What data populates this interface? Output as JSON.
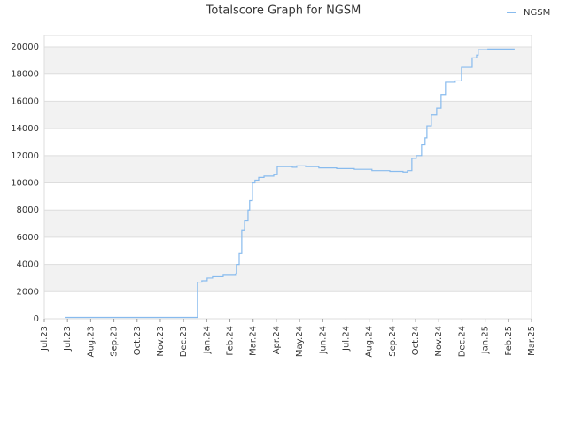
{
  "chart_data": {
    "type": "line",
    "title": "Totalscore Graph for NGSM",
    "xlim": [
      0,
      21
    ],
    "xticks": [
      {
        "value": 0,
        "label": "Jul.23"
      },
      {
        "value": 1,
        "label": "Jul.23"
      },
      {
        "value": 2,
        "label": "Aug.23"
      },
      {
        "value": 3,
        "label": "Sep.23"
      },
      {
        "value": 4,
        "label": "Oct.23"
      },
      {
        "value": 5,
        "label": "Nov.23"
      },
      {
        "value": 6,
        "label": "Dec.23"
      },
      {
        "value": 7,
        "label": "Jan.24"
      },
      {
        "value": 8,
        "label": "Feb.24"
      },
      {
        "value": 9,
        "label": "Mar.24"
      },
      {
        "value": 10,
        "label": "Apr.24"
      },
      {
        "value": 11,
        "label": "May.24"
      },
      {
        "value": 12,
        "label": "Jun.24"
      },
      {
        "value": 13,
        "label": "Jul.24"
      },
      {
        "value": 14,
        "label": "Aug.24"
      },
      {
        "value": 15,
        "label": "Sep.24"
      },
      {
        "value": 16,
        "label": "Oct.24"
      },
      {
        "value": 17,
        "label": "Nov.24"
      },
      {
        "value": 18,
        "label": "Dec.24"
      },
      {
        "value": 19,
        "label": "Jan.25"
      },
      {
        "value": 20,
        "label": "Feb.25"
      },
      {
        "value": 21,
        "label": "Mar.25"
      }
    ],
    "ylim": [
      0,
      20850
    ],
    "yticks": [
      0,
      2000,
      4000,
      6000,
      8000,
      10000,
      12000,
      14000,
      16000,
      18000,
      20000
    ],
    "grid": true,
    "legend": "top-right",
    "x": [
      0.88,
      6.56,
      6.6,
      6.79,
      7.02,
      7.25,
      7.71,
      8.24,
      8.28,
      8.4,
      8.51,
      8.63,
      8.78,
      8.85,
      8.97,
      9.08,
      9.24,
      9.47,
      9.89,
      10.04,
      10.38,
      10.69,
      10.88,
      11.26,
      11.83,
      12.6,
      13.36,
      14.12,
      14.89,
      15.46,
      15.65,
      15.84,
      16.03,
      16.26,
      16.41,
      16.49,
      16.68,
      16.91,
      17.1,
      17.29,
      17.71,
      17.98,
      18.36,
      18.44,
      18.63,
      18.7,
      19.05,
      19.12,
      20.27
    ],
    "series": [
      {
        "name": "NGSM",
        "color": "#88bbee",
        "values": [
          100,
          100,
          2700,
          2800,
          3000,
          3100,
          3200,
          3300,
          4000,
          4800,
          6500,
          7200,
          8000,
          8700,
          10000,
          10200,
          10400,
          10500,
          10600,
          11200,
          11200,
          11150,
          11250,
          11200,
          11100,
          11050,
          11000,
          10900,
          10850,
          10800,
          10900,
          11800,
          12000,
          12800,
          13300,
          14200,
          15000,
          15500,
          16500,
          17400,
          17500,
          18500,
          18500,
          19200,
          19400,
          19800,
          19800,
          19850,
          19850
        ]
      }
    ]
  }
}
